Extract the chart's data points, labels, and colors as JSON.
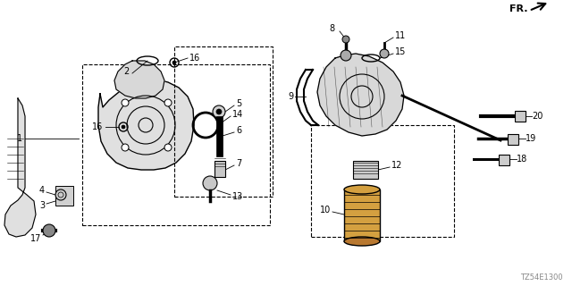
{
  "bg_color": "#ffffff",
  "watermark": "TZ54E1300",
  "fr_label": "FR."
}
